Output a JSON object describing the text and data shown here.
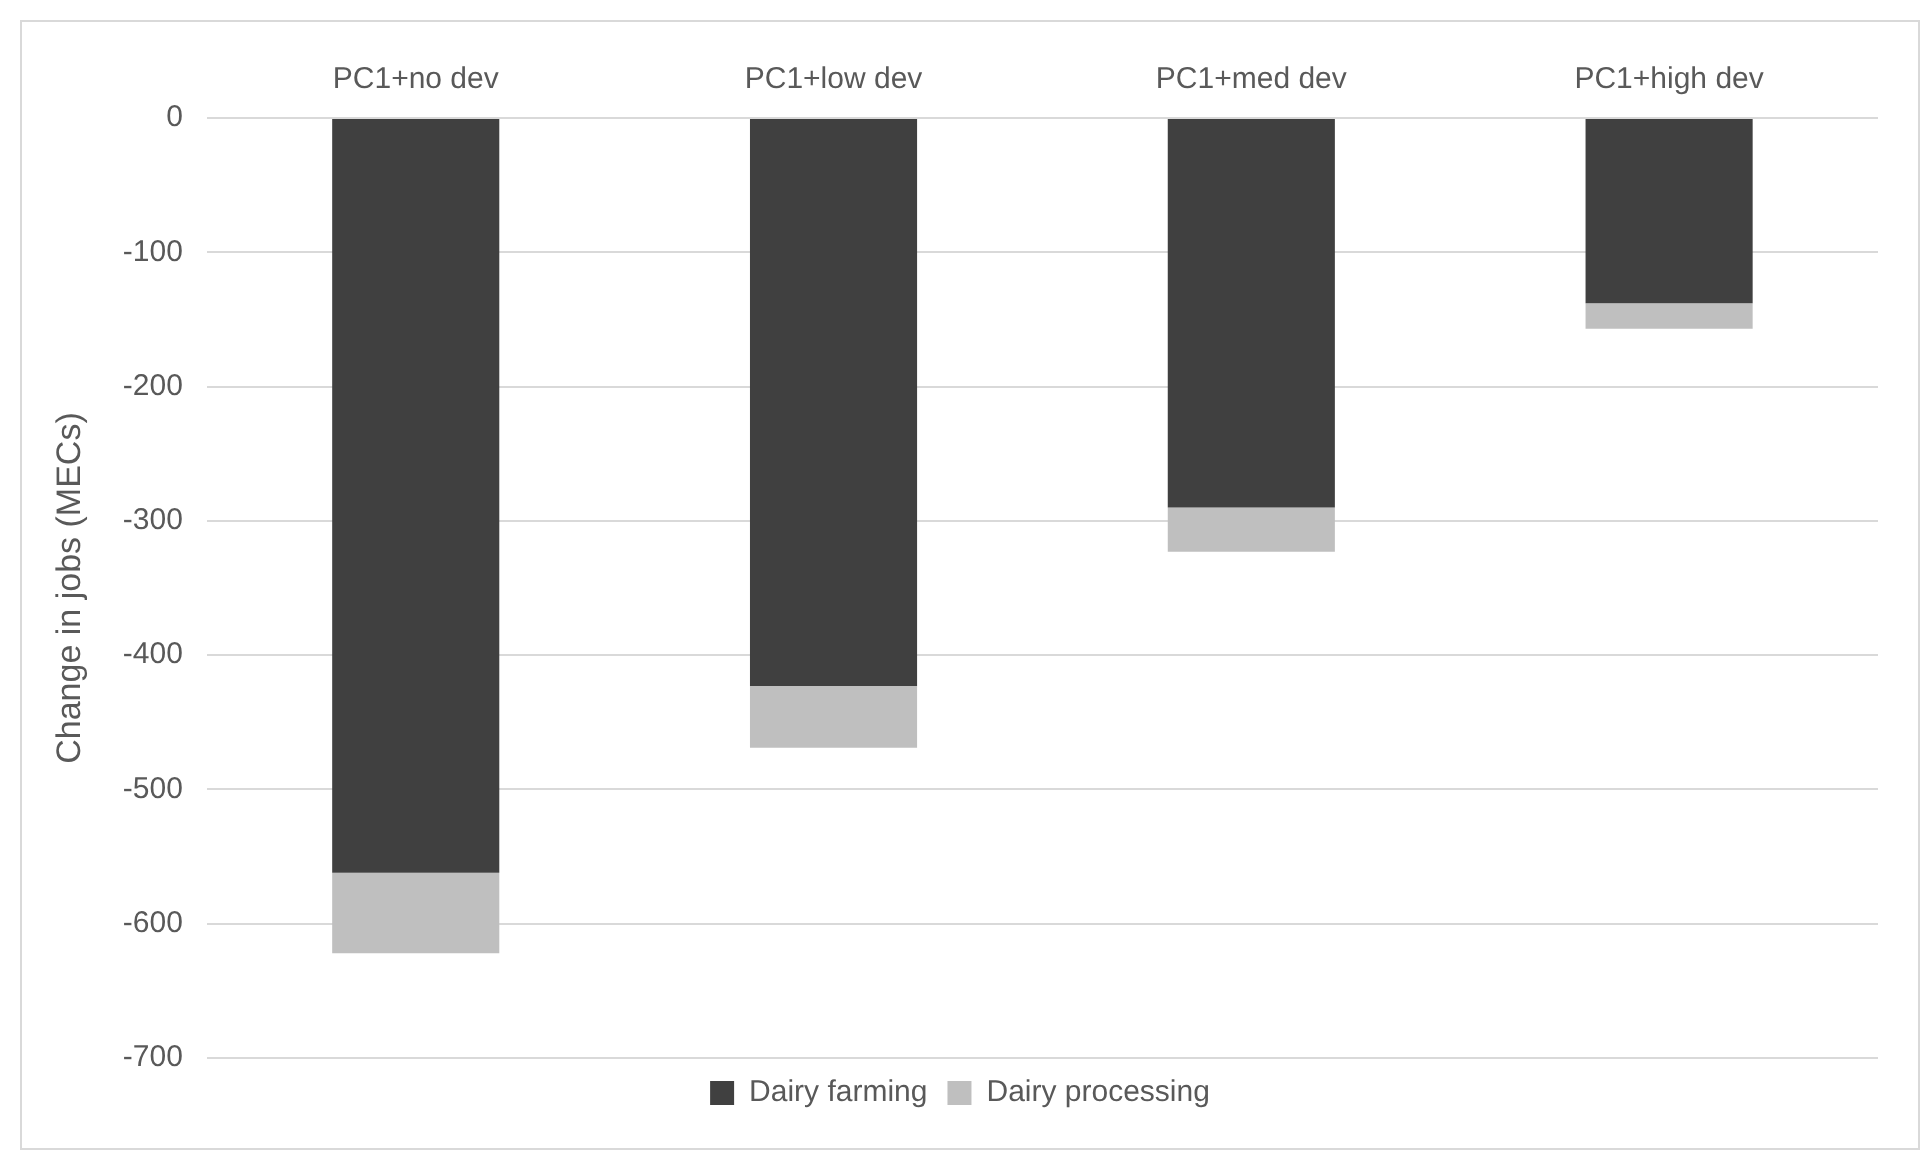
{
  "chart_data": {
    "type": "bar",
    "stacked": true,
    "ylabel": "Change in jobs (MECs)",
    "categories": [
      "PC1+no dev",
      "PC1+low dev",
      "PC1+med dev",
      "PC1+high dev"
    ],
    "series": [
      {
        "name": "Dairy farming",
        "color": "#404040",
        "values": [
          -562,
          -423,
          -290,
          -138
        ]
      },
      {
        "name": "Dairy processing",
        "color": "#bfbfbf",
        "values": [
          -60,
          -46,
          -33,
          -19
        ]
      }
    ],
    "ylim": [
      -700,
      0
    ],
    "yticks": [
      -700,
      -600,
      -500,
      -400,
      -300,
      -200,
      -100,
      0
    ],
    "grid": "y",
    "legend": "bottom"
  }
}
